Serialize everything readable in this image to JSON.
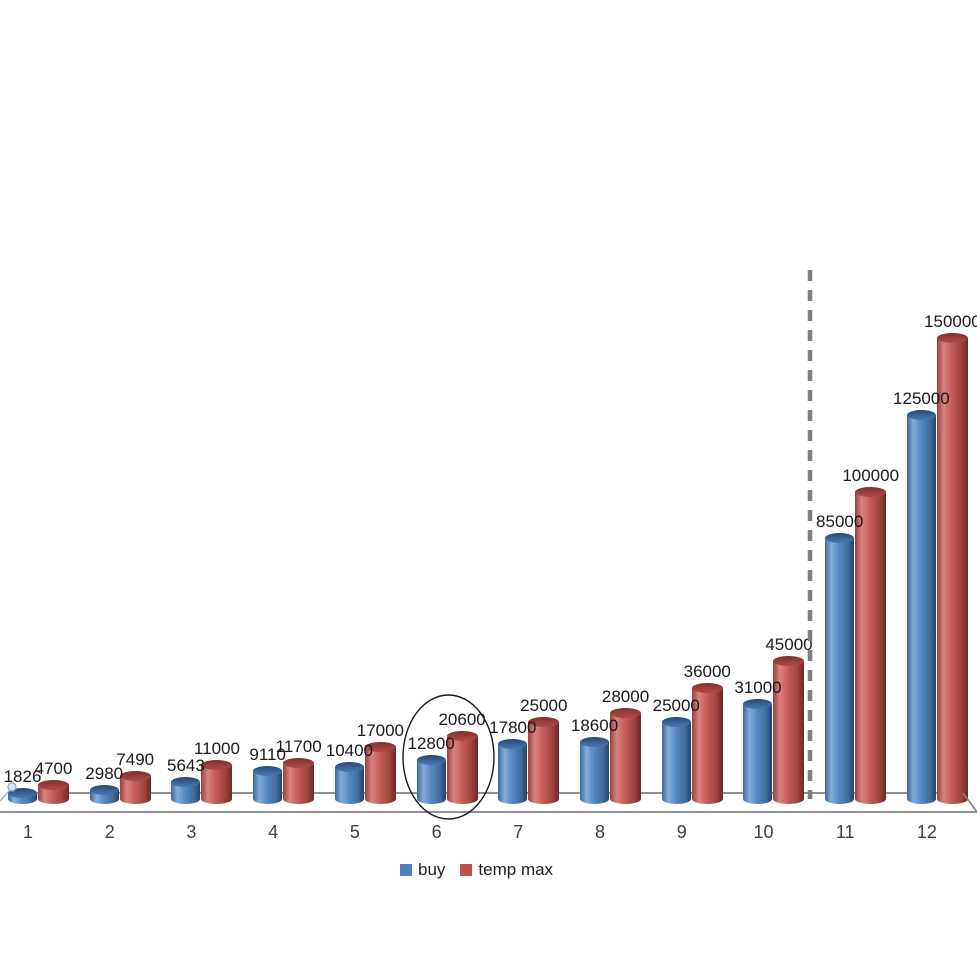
{
  "chart_data": {
    "type": "bar",
    "style": "3d-cylinder",
    "title": "",
    "xlabel": "",
    "ylabel": "",
    "ylim": [
      0,
      150000
    ],
    "grid": false,
    "legend_position": "bottom-center",
    "categories": [
      "1",
      "2",
      "3",
      "4",
      "5",
      "6",
      "7",
      "8",
      "9",
      "10",
      "11",
      "12"
    ],
    "series": [
      {
        "name": "buy",
        "color": "#4f81bd",
        "values": [
          1826,
          2980,
          5643,
          9110,
          10400,
          12800,
          17800,
          18600,
          25000,
          31000,
          85000,
          125000
        ],
        "data_labels": [
          "1826",
          "2980",
          "5643",
          "9110",
          "10400",
          "12800",
          "17800",
          "18600",
          "25000",
          "31000",
          "85000",
          "125000"
        ]
      },
      {
        "name": "temp max",
        "color": "#c0504d",
        "values": [
          4700,
          7490,
          11000,
          11700,
          17000,
          20600,
          25000,
          28000,
          36000,
          45000,
          100000,
          150000
        ],
        "data_labels": [
          "4700",
          "7490",
          "11000",
          "11700",
          "17000",
          "20600",
          "25000",
          "28000",
          "36000",
          "45000",
          "100000",
          "150000"
        ]
      }
    ],
    "annotations": [
      {
        "type": "ellipse",
        "name": "highlight-ellipse",
        "around_category": "6",
        "color": "#1a1a1a"
      },
      {
        "type": "vertical-dashed-line",
        "name": "separator-dashed-line",
        "between_categories": [
          "10",
          "11"
        ],
        "color": "#7f7f7f"
      },
      {
        "type": "leader-line-with-circle",
        "name": "label-leader",
        "near_category": "1"
      }
    ]
  },
  "legend": {
    "items": [
      {
        "label": "buy",
        "color": "#4f81bd"
      },
      {
        "label": "temp max",
        "color": "#c0504d"
      }
    ]
  }
}
